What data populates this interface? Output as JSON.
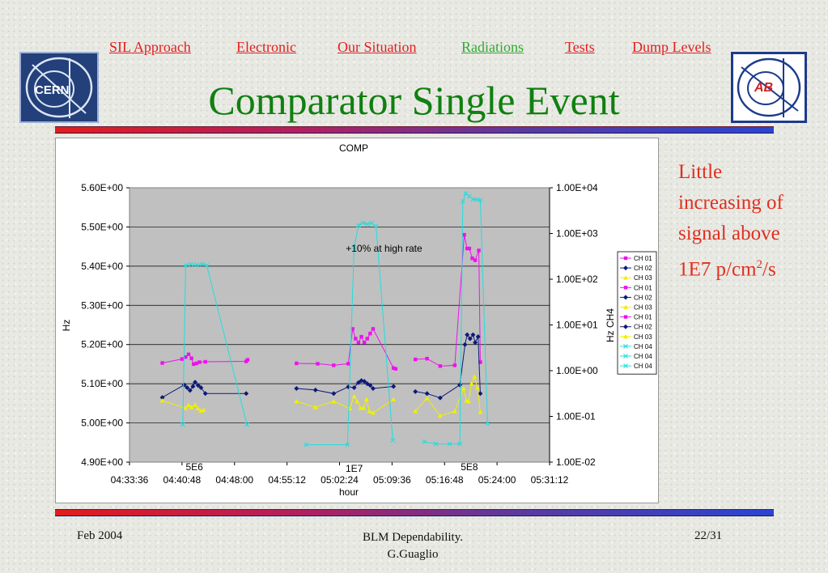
{
  "nav": {
    "items": [
      {
        "label": "SIL Approach"
      },
      {
        "label": "Electronic"
      },
      {
        "label": "Our Situation"
      },
      {
        "label": "Radiations",
        "active": true
      },
      {
        "label": "Tests"
      },
      {
        "label": "Dump Levels"
      }
    ],
    "link_color": "#e0201e",
    "active_color": "#33aa33"
  },
  "logos": {
    "left": {
      "text": "CERN",
      "icon": "cern-logo-icon"
    },
    "right": {
      "text": "AB",
      "icon": "ab-logo-icon"
    }
  },
  "slide": {
    "title": "Comparator Single Event",
    "title_color": "#108010",
    "note_line1": "Little increasing of signal above 1E7 p/cm",
    "note_sup": "2",
    "note_line2": "/s",
    "note_color": "#e0301e"
  },
  "footer": {
    "date": "Feb 2004",
    "center_line1": "BLM Dependability.",
    "center_line2": "G.Guaglio",
    "page": "22/31"
  },
  "chart_data": {
    "type": "line",
    "title": "COMP",
    "xlabel": "hour",
    "ylabel": "Hz",
    "y2label": "Hz CH4",
    "ylim": [
      4.9,
      5.6
    ],
    "y2lim_log10": [
      -2,
      4
    ],
    "x_ticks": [
      "04:33:36",
      "04:40:48",
      "04:48:00",
      "04:55:12",
      "05:02:24",
      "05:09:36",
      "05:16:48",
      "05:24:00",
      "05:31:12"
    ],
    "x_range": [
      "04:33:36",
      "05:31:12"
    ],
    "y_ticks": [
      "4.90E+00",
      "5.00E+00",
      "5.10E+00",
      "5.20E+00",
      "5.30E+00",
      "5.40E+00",
      "5.50E+00",
      "5.60E+00"
    ],
    "y2_ticks": [
      "1.00E-02",
      "1.00E-01",
      "1.00E+00",
      "1.00E+01",
      "1.00E+02",
      "1.00E+03",
      "1.00E+04"
    ],
    "grid": true,
    "plot_background": "#c0c0c0",
    "legend_position": "right",
    "annotations": [
      {
        "text": "+10% at high rate",
        "x": "05:08:30",
        "y": 5.445
      },
      {
        "text": "5E6",
        "x": "04:42:30",
        "y": 4.888
      },
      {
        "text": "1E7",
        "x": "05:04:25",
        "y": 4.883
      },
      {
        "text": "5E8",
        "x": "05:20:12",
        "y": 4.888
      }
    ],
    "legend": [
      {
        "name": "CH 01",
        "color": "#ee11ee",
        "marker": "square"
      },
      {
        "name": "CH 02",
        "color": "#0c1a78",
        "marker": "diamond"
      },
      {
        "name": "CH 03",
        "color": "#f0f000",
        "marker": "triangle"
      },
      {
        "name": "CH 01",
        "color": "#ee11ee",
        "marker": "square"
      },
      {
        "name": "CH 02",
        "color": "#0c1a78",
        "marker": "diamond"
      },
      {
        "name": "CH 03",
        "color": "#f0f000",
        "marker": "triangle"
      },
      {
        "name": "CH 01",
        "color": "#ee11ee",
        "marker": "square"
      },
      {
        "name": "CH 02",
        "color": "#0c1a78",
        "marker": "diamond"
      },
      {
        "name": "CH 03",
        "color": "#f0f000",
        "marker": "triangle"
      },
      {
        "name": "CH 04",
        "color": "#22dddd",
        "marker": "x"
      },
      {
        "name": "CH 04",
        "color": "#22dddd",
        "marker": "x"
      },
      {
        "name": "CH 04",
        "color": "#22dddd",
        "marker": "x"
      }
    ],
    "series": [
      {
        "name": "CH 01",
        "color": "#ee11ee",
        "marker": "square",
        "axis": "left",
        "points": [
          [
            "04:38:06",
            5.153
          ],
          [
            "04:40:48",
            5.163
          ],
          [
            "04:41:18",
            5.168
          ],
          [
            "04:41:42",
            5.175
          ],
          [
            "04:42:06",
            5.165
          ],
          [
            "04:42:24",
            5.15
          ],
          [
            "04:42:48",
            5.152
          ],
          [
            "04:43:12",
            5.155
          ],
          [
            "04:44:00",
            5.156
          ],
          [
            "04:49:36",
            5.157
          ],
          [
            "04:49:48",
            5.161
          ]
        ]
      },
      {
        "name": "CH 02",
        "color": "#0c1a78",
        "marker": "diamond",
        "axis": "left",
        "points": [
          [
            "04:38:06",
            5.065
          ],
          [
            "04:41:06",
            5.097
          ],
          [
            "04:41:30",
            5.09
          ],
          [
            "04:41:54",
            5.083
          ],
          [
            "04:42:18",
            5.093
          ],
          [
            "04:42:36",
            5.104
          ],
          [
            "04:43:00",
            5.096
          ],
          [
            "04:43:24",
            5.09
          ],
          [
            "04:44:00",
            5.075
          ],
          [
            "04:49:36",
            5.075
          ]
        ]
      },
      {
        "name": "CH 03",
        "color": "#f0f000",
        "marker": "triangle",
        "axis": "left",
        "points": [
          [
            "04:38:06",
            5.057
          ],
          [
            "04:41:18",
            5.038
          ],
          [
            "04:41:42",
            5.045
          ],
          [
            "04:42:06",
            5.04
          ],
          [
            "04:42:36",
            5.046
          ],
          [
            "04:43:00",
            5.037
          ],
          [
            "04:43:24",
            5.031
          ],
          [
            "04:43:48",
            5.033
          ]
        ]
      },
      {
        "name": "CH 04",
        "color": "#22dddd",
        "marker": "x",
        "axis": "right",
        "points": [
          [
            "04:40:54",
            0.066
          ],
          [
            "04:41:18",
            200
          ],
          [
            "04:42:00",
            210
          ],
          [
            "04:42:48",
            205
          ],
          [
            "04:43:36",
            215
          ],
          [
            "04:44:12",
            200
          ],
          [
            "04:49:42",
            0.066
          ]
        ]
      },
      {
        "name": "CH 01",
        "color": "#ee11ee",
        "marker": "square",
        "axis": "left",
        "points": [
          [
            "04:56:30",
            5.152
          ],
          [
            "04:59:24",
            5.151
          ],
          [
            "05:01:36",
            5.147
          ],
          [
            "05:03:36",
            5.151
          ],
          [
            "05:04:12",
            5.24
          ],
          [
            "05:04:36",
            5.215
          ],
          [
            "05:05:00",
            5.205
          ],
          [
            "05:05:24",
            5.22
          ],
          [
            "05:05:48",
            5.205
          ],
          [
            "05:06:12",
            5.215
          ],
          [
            "05:06:36",
            5.228
          ],
          [
            "05:07:00",
            5.24
          ],
          [
            "05:09:48",
            5.14
          ],
          [
            "05:10:06",
            5.138
          ]
        ]
      },
      {
        "name": "CH 02",
        "color": "#0c1a78",
        "marker": "diamond",
        "axis": "left",
        "points": [
          [
            "04:56:30",
            5.088
          ],
          [
            "04:59:06",
            5.084
          ],
          [
            "05:01:36",
            5.075
          ],
          [
            "05:03:36",
            5.092
          ],
          [
            "05:04:24",
            5.09
          ],
          [
            "05:05:00",
            5.103
          ],
          [
            "05:05:24",
            5.108
          ],
          [
            "05:05:48",
            5.106
          ],
          [
            "05:06:12",
            5.1
          ],
          [
            "05:06:36",
            5.096
          ],
          [
            "05:07:00",
            5.088
          ],
          [
            "05:09:48",
            5.093
          ]
        ]
      },
      {
        "name": "CH 03",
        "color": "#f0f000",
        "marker": "triangle",
        "axis": "left",
        "points": [
          [
            "04:56:30",
            5.055
          ],
          [
            "04:59:06",
            5.04
          ],
          [
            "05:01:36",
            5.055
          ],
          [
            "05:03:48",
            5.037
          ],
          [
            "05:04:24",
            5.068
          ],
          [
            "05:04:48",
            5.055
          ],
          [
            "05:05:18",
            5.038
          ],
          [
            "05:05:42",
            5.038
          ],
          [
            "05:06:06",
            5.06
          ],
          [
            "05:06:30",
            5.03
          ],
          [
            "05:07:00",
            5.026
          ],
          [
            "05:09:48",
            5.06
          ]
        ]
      },
      {
        "name": "CH 04",
        "color": "#22dddd",
        "marker": "x",
        "axis": "right",
        "points": [
          [
            "04:57:48",
            0.024
          ],
          [
            "05:03:30",
            0.024
          ],
          [
            "05:04:24",
            500
          ],
          [
            "05:05:00",
            1500
          ],
          [
            "05:05:36",
            1700
          ],
          [
            "05:06:12",
            1600
          ],
          [
            "05:06:48",
            1700
          ],
          [
            "05:07:24",
            1450
          ],
          [
            "05:09:42",
            0.03
          ]
        ]
      },
      {
        "name": "CH 01",
        "color": "#ee11ee",
        "marker": "square",
        "axis": "left",
        "points": [
          [
            "05:12:48",
            5.162
          ],
          [
            "05:14:24",
            5.164
          ],
          [
            "05:16:12",
            5.145
          ],
          [
            "05:18:12",
            5.147
          ],
          [
            "05:19:30",
            5.48
          ],
          [
            "05:19:54",
            5.445
          ],
          [
            "05:20:12",
            5.445
          ],
          [
            "05:20:36",
            5.42
          ],
          [
            "05:21:00",
            5.415
          ],
          [
            "05:21:30",
            5.44
          ],
          [
            "05:21:42",
            5.155
          ]
        ]
      },
      {
        "name": "CH 02",
        "color": "#0c1a78",
        "marker": "diamond",
        "axis": "left",
        "points": [
          [
            "05:12:48",
            5.08
          ],
          [
            "05:14:24",
            5.075
          ],
          [
            "05:16:12",
            5.064
          ],
          [
            "05:18:54",
            5.097
          ],
          [
            "05:19:36",
            5.2
          ],
          [
            "05:19:54",
            5.225
          ],
          [
            "05:20:18",
            5.215
          ],
          [
            "05:20:42",
            5.225
          ],
          [
            "05:21:00",
            5.205
          ],
          [
            "05:21:24",
            5.22
          ],
          [
            "05:21:42",
            5.075
          ]
        ]
      },
      {
        "name": "CH 03",
        "color": "#f0f000",
        "marker": "triangle",
        "axis": "left",
        "points": [
          [
            "05:12:48",
            5.03
          ],
          [
            "05:14:24",
            5.063
          ],
          [
            "05:16:12",
            5.018
          ],
          [
            "05:18:12",
            5.03
          ],
          [
            "05:19:24",
            5.088
          ],
          [
            "05:19:48",
            5.057
          ],
          [
            "05:20:06",
            5.055
          ],
          [
            "05:20:30",
            5.1
          ],
          [
            "05:20:54",
            5.118
          ],
          [
            "05:21:18",
            5.09
          ],
          [
            "05:21:42",
            5.028
          ]
        ]
      },
      {
        "name": "CH 04",
        "color": "#22dddd",
        "marker": "x",
        "axis": "right",
        "points": [
          [
            "05:14:00",
            0.028
          ],
          [
            "05:15:36",
            0.025
          ],
          [
            "05:17:30",
            0.025
          ],
          [
            "05:18:54",
            0.025
          ],
          [
            "05:19:18",
            5000
          ],
          [
            "05:19:42",
            7500
          ],
          [
            "05:20:12",
            6500
          ],
          [
            "05:20:42",
            5600
          ],
          [
            "05:21:12",
            5500
          ],
          [
            "05:21:42",
            5400
          ],
          [
            "05:22:42",
            0.07
          ]
        ]
      }
    ]
  }
}
